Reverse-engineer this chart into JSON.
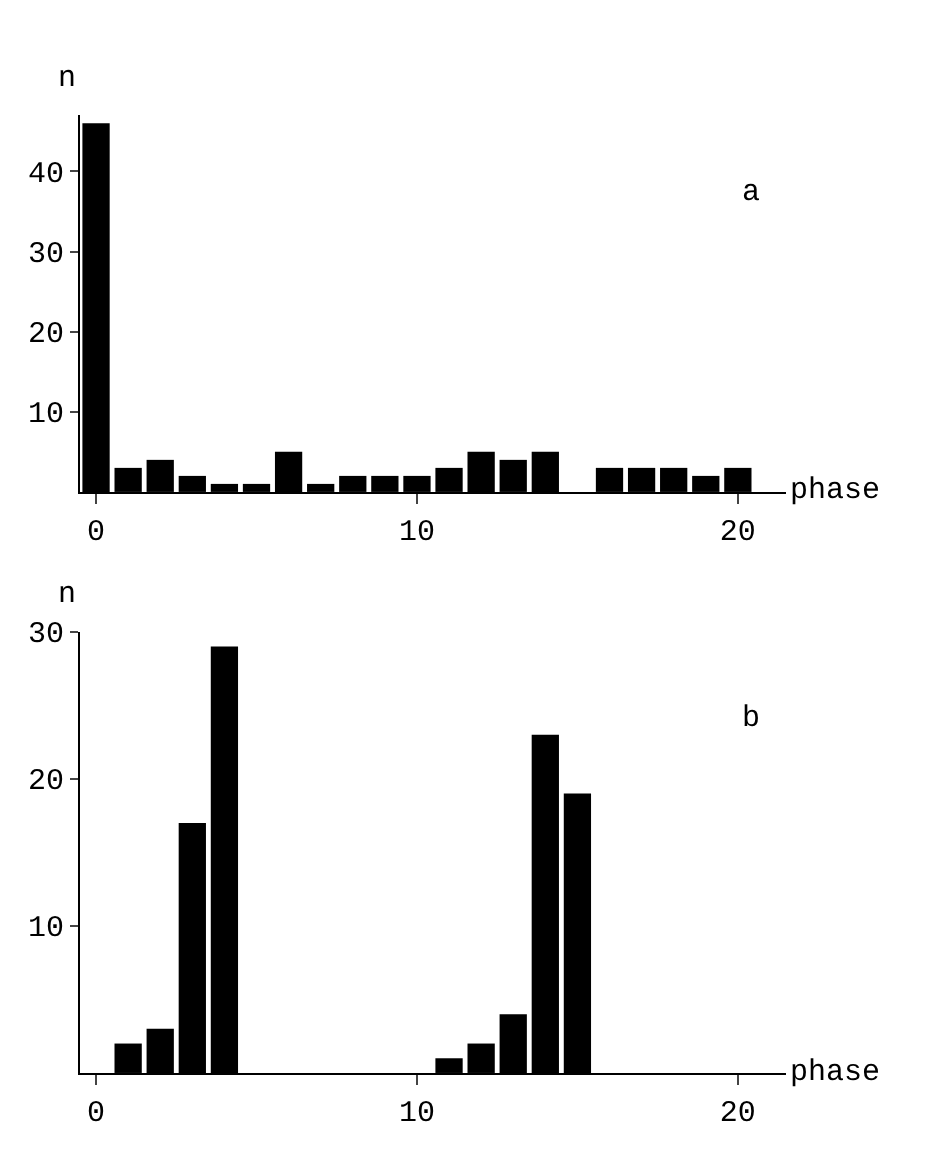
{
  "chart_data": [
    {
      "type": "bar",
      "xlabel": "phase",
      "ylabel": "n",
      "annotations": [
        "a"
      ],
      "x": [
        0,
        1,
        2,
        3,
        4,
        5,
        6,
        7,
        8,
        9,
        10,
        11,
        12,
        13,
        14,
        15,
        16,
        17,
        18,
        19,
        20
      ],
      "values": [
        46,
        3,
        4,
        2,
        1,
        1,
        5,
        1,
        2,
        2,
        2,
        3,
        5,
        4,
        5,
        0,
        3,
        3,
        3,
        2,
        3
      ],
      "color": "#000000",
      "xlim": [
        -0.5,
        21.5
      ],
      "xticks": [
        0,
        10,
        20
      ],
      "ylim": [
        0,
        47
      ],
      "yticks": [
        10,
        20,
        30,
        40
      ]
    },
    {
      "type": "bar",
      "xlabel": "phase",
      "ylabel": "n",
      "annotations": [
        "b"
      ],
      "x": [
        0,
        1,
        2,
        3,
        4,
        5,
        6,
        7,
        8,
        9,
        10,
        11,
        12,
        13,
        14,
        15,
        16,
        17,
        18,
        19,
        20
      ],
      "values": [
        0,
        2,
        3,
        17,
        29,
        0,
        0,
        0,
        0,
        0,
        0,
        1,
        2,
        4,
        23,
        19,
        0,
        0,
        0,
        0,
        0
      ],
      "color": "#000000",
      "xlim": [
        -0.5,
        21.5
      ],
      "xticks": [
        0,
        10,
        20
      ],
      "ylim": [
        0,
        30
      ],
      "yticks": [
        10,
        20,
        30
      ]
    }
  ]
}
